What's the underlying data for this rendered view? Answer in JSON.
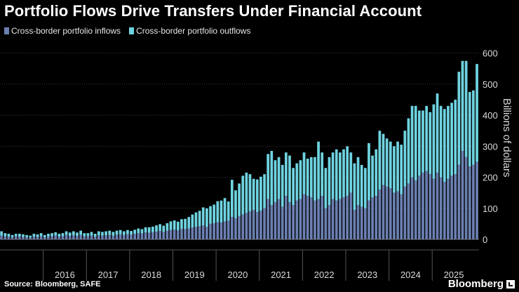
{
  "chart_data": {
    "type": "bar",
    "stacked": true,
    "title": "Portfolio Flows Drive Transfers Under Financial Account",
    "ylabel": "Billions of dollars",
    "ylim": [
      0,
      640
    ],
    "yticks": [
      0,
      100,
      200,
      300,
      400,
      500,
      600
    ],
    "year_labels": [
      "2016",
      "2017",
      "2018",
      "2019",
      "2020",
      "2021",
      "2022",
      "2023",
      "2024",
      "2025"
    ],
    "start_year": 2015,
    "start_month": 1,
    "series": [
      {
        "name": "Cross-border portfolio inflows",
        "color": "#6b7fb1",
        "values": [
          12,
          10,
          9,
          7,
          10,
          9,
          8,
          7,
          6,
          9,
          8,
          10,
          7,
          9,
          10,
          12,
          9,
          10,
          14,
          11,
          13,
          11,
          14,
          10,
          10,
          12,
          9,
          13,
          12,
          13,
          14,
          12,
          15,
          16,
          14,
          17,
          15,
          18,
          20,
          19,
          22,
          21,
          23,
          25,
          27,
          24,
          28,
          30,
          31,
          29,
          34,
          33,
          35,
          38,
          40,
          42,
          45,
          40,
          50,
          52,
          55,
          54,
          58,
          60,
          72,
          68,
          75,
          80,
          85,
          90,
          95,
          88,
          92,
          100,
          130,
          110,
          120,
          130,
          105,
          140,
          120,
          110,
          125,
          130,
          145,
          140,
          135,
          125,
          130,
          140,
          100,
          110,
          130,
          125,
          130,
          135,
          140,
          150,
          95,
          110,
          105,
          100,
          125,
          135,
          140,
          160,
          175,
          170,
          165,
          150,
          155,
          145,
          170,
          180,
          200,
          190,
          205,
          215,
          220,
          210,
          195,
          215,
          200,
          185,
          195,
          205,
          210,
          240,
          285,
          265,
          235,
          240,
          250
        ]
      },
      {
        "name": "Cross-border portfolio outflows",
        "color": "#6fd3e0",
        "values": [
          14,
          10,
          9,
          7,
          8,
          9,
          8,
          7,
          6,
          9,
          8,
          10,
          7,
          9,
          10,
          11,
          9,
          10,
          12,
          11,
          13,
          11,
          14,
          10,
          10,
          12,
          9,
          13,
          12,
          13,
          14,
          12,
          13,
          14,
          12,
          13,
          12,
          13,
          15,
          14,
          17,
          18,
          18,
          20,
          22,
          20,
          24,
          28,
          30,
          28,
          31,
          33,
          37,
          42,
          47,
          50,
          58,
          60,
          57,
          60,
          68,
          71,
          75,
          62,
          120,
          90,
          105,
          125,
          130,
          120,
          100,
          105,
          110,
          110,
          145,
          175,
          135,
          135,
          135,
          140,
          150,
          120,
          120,
          125,
          135,
          120,
          130,
          140,
          185,
          140,
          130,
          155,
          150,
          165,
          150,
          155,
          160,
          130,
          150,
          155,
          135,
          130,
          185,
          135,
          150,
          190,
          165,
          155,
          150,
          150,
          160,
          160,
          180,
          210,
          230,
          240,
          210,
          200,
          210,
          200,
          240,
          255,
          230,
          235,
          235,
          235,
          240,
          300,
          290,
          310,
          240,
          240,
          315
        ]
      }
    ]
  },
  "legend": {
    "inflows": "Cross-border portfolio inflows",
    "outflows": "Cross-border portfolio outflows"
  },
  "footer": {
    "source": "Source: Bloomberg, SAFE",
    "brand": "Bloomberg"
  },
  "colors": {
    "background": "#000000",
    "inflows": "#6b7fb1",
    "outflows": "#6fd3e0",
    "gridline": "#3a3a3a",
    "text": "#ffffff"
  }
}
